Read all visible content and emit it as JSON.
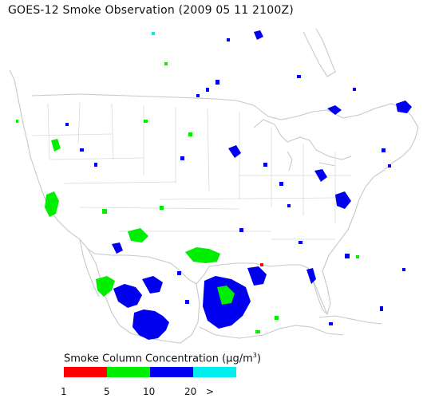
{
  "title": "GOES-12 Smoke Observation (2009 05 11  2100Z)",
  "legend": {
    "title_prefix": "Smoke Column Concentration (",
    "unit_mu": "μ",
    "unit_rest": "g/m",
    "unit_sup": "3",
    "title_suffix": ")",
    "bins": [
      {
        "label": "1",
        "color": "#ff0000"
      },
      {
        "label": "5",
        "color": "#00ee00"
      },
      {
        "label": "10",
        "color": "#0000ee"
      },
      {
        "label": "20",
        "color": "#00eeee"
      }
    ],
    "last_label": ">"
  }
}
